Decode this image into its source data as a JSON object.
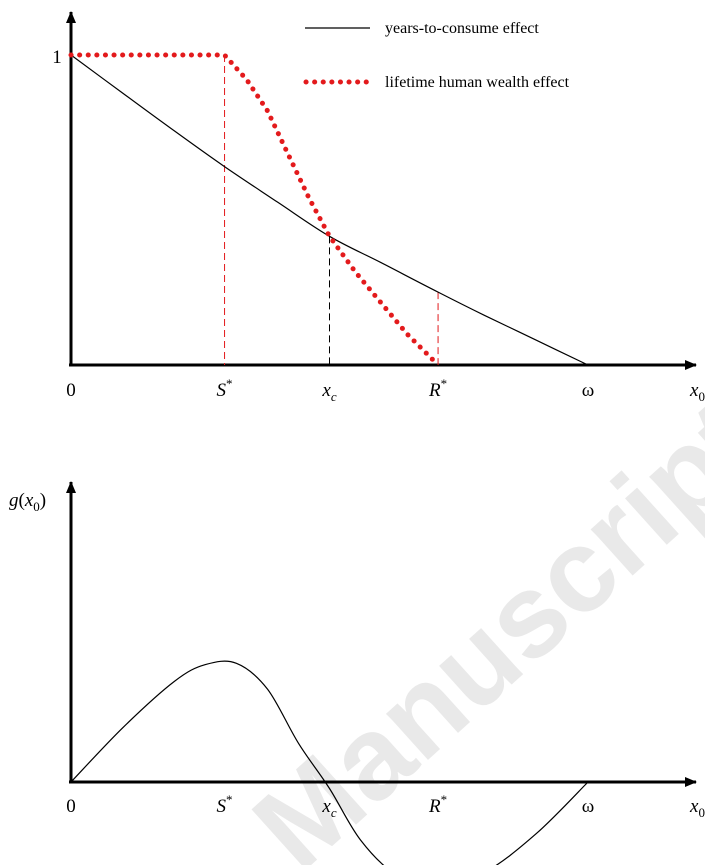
{
  "watermark": "Manuscript",
  "chart_data": [
    {
      "type": "line",
      "title": "",
      "ylabel": "",
      "y_tick_one": "1",
      "x_ticks": [
        {
          "label": "0",
          "x": 0
        },
        {
          "label": "S*",
          "x": 0.297
        },
        {
          "label": "x",
          "sub": "c",
          "x": 0.5
        },
        {
          "label": "R*",
          "x": 0.71
        },
        {
          "label": "ω",
          "x": 1.0
        },
        {
          "label": "x",
          "sub": "0",
          "x": 1.2
        }
      ],
      "legend": {
        "placement": "top-right",
        "entries": [
          "years-to-consume effect",
          "lifetime human wealth effect"
        ]
      },
      "series": [
        {
          "name": "years-to-consume effect",
          "color": "#000000",
          "style": "solid",
          "x": [
            0,
            0.1,
            0.2,
            0.297,
            0.4,
            0.5,
            0.6,
            0.71,
            0.8,
            0.9,
            1.0
          ],
          "y": [
            1,
            0.877,
            0.755,
            0.64,
            0.525,
            0.415,
            0.33,
            0.235,
            0.16,
            0.08,
            0
          ]
        },
        {
          "name": "lifetime human wealth effect",
          "color": "#e31a1c",
          "style": "dotted",
          "x": [
            0,
            0.297,
            0.34,
            0.38,
            0.42,
            0.46,
            0.5,
            0.55,
            0.6,
            0.65,
            0.71
          ],
          "y": [
            1,
            1,
            0.92,
            0.82,
            0.68,
            0.54,
            0.415,
            0.3,
            0.2,
            0.1,
            0
          ]
        }
      ],
      "guides": [
        {
          "x": 0.297,
          "y_top": 1,
          "color": "#e31a1c"
        },
        {
          "x": 0.5,
          "y_top": 0.415,
          "color": "#000000"
        },
        {
          "x": 0.71,
          "y_top": 0.235,
          "color": "#e31a1c"
        }
      ],
      "xlim": [
        0,
        1.2
      ],
      "ylim": [
        0,
        1.0
      ]
    },
    {
      "type": "line",
      "title": "",
      "ylabel": "g(x0)",
      "x_ticks": [
        {
          "label": "0",
          "x": 0
        },
        {
          "label": "S*",
          "x": 0.297
        },
        {
          "label": "x",
          "sub": "c",
          "x": 0.5
        },
        {
          "label": "R*",
          "x": 0.71
        },
        {
          "label": "ω",
          "x": 1.0
        },
        {
          "label": "x",
          "sub": "0",
          "x": 1.2
        }
      ],
      "series": [
        {
          "color": "#000000",
          "style": "solid",
          "x": [
            0,
            0.1,
            0.2,
            0.26,
            0.32,
            0.38,
            0.44,
            0.5,
            0.56,
            0.63,
            0.71,
            0.8,
            0.9,
            1.0
          ],
          "y": [
            0,
            0.42,
            0.78,
            0.91,
            0.92,
            0.72,
            0.3,
            -0.05,
            -0.45,
            -0.72,
            -0.8,
            -0.7,
            -0.4,
            0
          ]
        }
      ],
      "xlim": [
        0,
        1.2
      ],
      "ylim": [
        -0.8,
        2.4
      ]
    }
  ]
}
